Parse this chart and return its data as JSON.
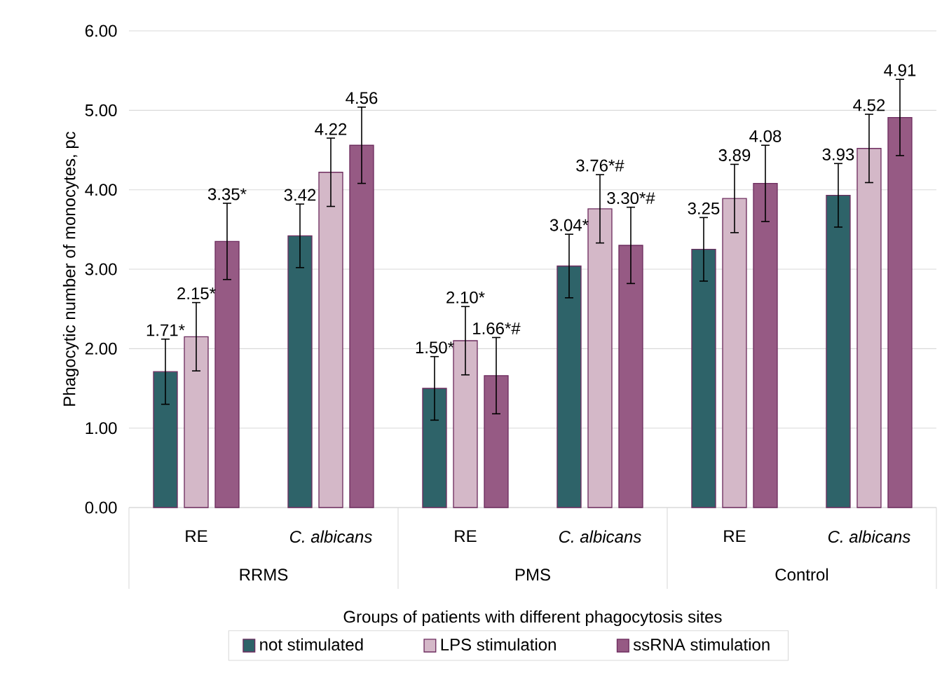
{
  "chart_data": {
    "type": "bar",
    "xlabel": "Groups of patients with different phagocytosis sites",
    "ylabel": "Phagocytic number of monocytes, pc",
    "categories": [
      "RE",
      "*C. albicans*",
      "RE",
      "*C. albicans*",
      "RE",
      "*C. albicans*"
    ],
    "annotations": [
      "RRMS",
      "PMS",
      "Control"
    ],
    "series": [
      {
        "name": "not stimulated",
        "color": "#2e6369",
        "values": [
          1.71,
          3.42,
          1.5,
          3.04,
          3.25,
          3.93
        ],
        "errors": [
          0.41,
          0.4,
          0.4,
          0.4,
          0.4,
          0.4
        ],
        "value_labels": [
          "1.71*",
          "3.42",
          "1.50*",
          "3.04*",
          "3.25",
          "3.93"
        ]
      },
      {
        "name": "LPS stimulation",
        "color": "#d4b8c8",
        "values": [
          2.15,
          4.22,
          2.1,
          3.76,
          3.89,
          4.52
        ],
        "errors": [
          0.43,
          0.43,
          0.43,
          0.43,
          0.43,
          0.43
        ],
        "value_labels": [
          "2.15*",
          "4.22",
          "2.10*",
          "3.76*#",
          "3.89",
          "4.52"
        ]
      },
      {
        "name": "ssRNA stimulation",
        "color": "#965a84",
        "values": [
          3.35,
          4.56,
          1.66,
          3.3,
          4.08,
          4.91
        ],
        "errors": [
          0.48,
          0.48,
          0.48,
          0.48,
          0.48,
          0.48
        ],
        "value_labels": [
          "3.35*",
          "4.56",
          "1.66*#",
          "3.30*#",
          "4.08",
          "4.91"
        ]
      }
    ],
    "ylim": [
      0,
      6
    ],
    "yticks": [
      {
        "value": 0,
        "label": "0.00"
      },
      {
        "value": 1,
        "label": "1.00"
      },
      {
        "value": 2,
        "label": "2.00"
      },
      {
        "value": 3,
        "label": "3.00"
      },
      {
        "value": 4,
        "label": "4.00"
      },
      {
        "value": 5,
        "label": "5.00"
      },
      {
        "value": 6,
        "label": "6.00"
      }
    ],
    "grid": "y",
    "legend": "bottom"
  }
}
